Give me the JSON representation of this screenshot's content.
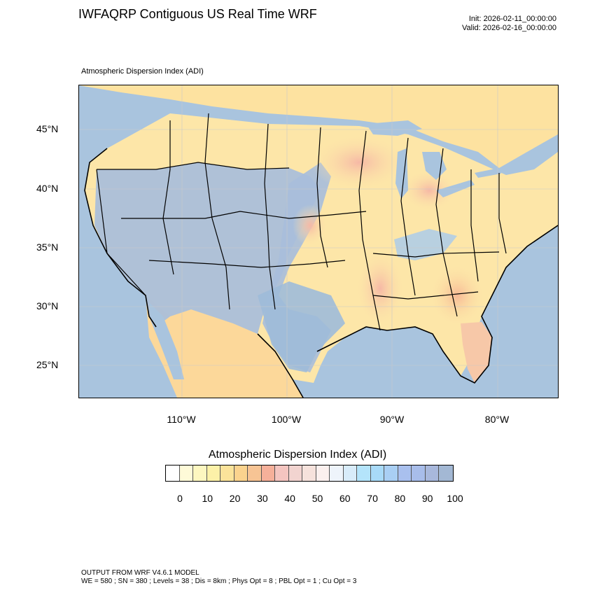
{
  "header": {
    "title": "IWFAQRP Contiguous US Real Time WRF",
    "init": "Init: 2026-02-11_00:00:00",
    "valid": "Valid: 2026-02-16_00:00:00"
  },
  "map": {
    "subtitle": "Atmospheric Dispersion Index   (ADI)",
    "lat_labels": [
      "45°N",
      "40°N",
      "35°N",
      "30°N",
      "25°N"
    ],
    "lon_labels": [
      "110°W",
      "100°W",
      "90°W",
      "80°W"
    ],
    "colors": {
      "ocean": "#a9c4de",
      "land_base": "#fde6a8",
      "high_adi": "#9ab8d8",
      "low_adi_pink": "#f3b7a8",
      "terrain_warm": "#fbd28a"
    }
  },
  "legend": {
    "title": "Atmospheric Dispersion Index  (ADI)",
    "colors": [
      "#ffffff",
      "#fefad8",
      "#fdf7c0",
      "#fcf1a8",
      "#fbe39a",
      "#fbd38e",
      "#f7c494",
      "#f6b09a",
      "#f4c5c0",
      "#f2d4d0",
      "#f6e2dc",
      "#fbf0ee",
      "#eef4fb",
      "#d8ecfa",
      "#b4e4fb",
      "#a8daf8",
      "#a9cff4",
      "#a9c0ee",
      "#a8bdea",
      "#a8b8dc",
      "#a3b8d4"
    ],
    "ticks": [
      "0",
      "10",
      "20",
      "30",
      "40",
      "50",
      "60",
      "70",
      "80",
      "90",
      "100"
    ]
  },
  "footer": {
    "line1": "OUTPUT FROM WRF V4.6.1 MODEL",
    "line2": "WE = 580 ; SN = 380 ; Levels = 38 ; Dis = 8km ; Phys Opt = 8 ; PBL Opt = 1 ; Cu Opt = 3"
  }
}
